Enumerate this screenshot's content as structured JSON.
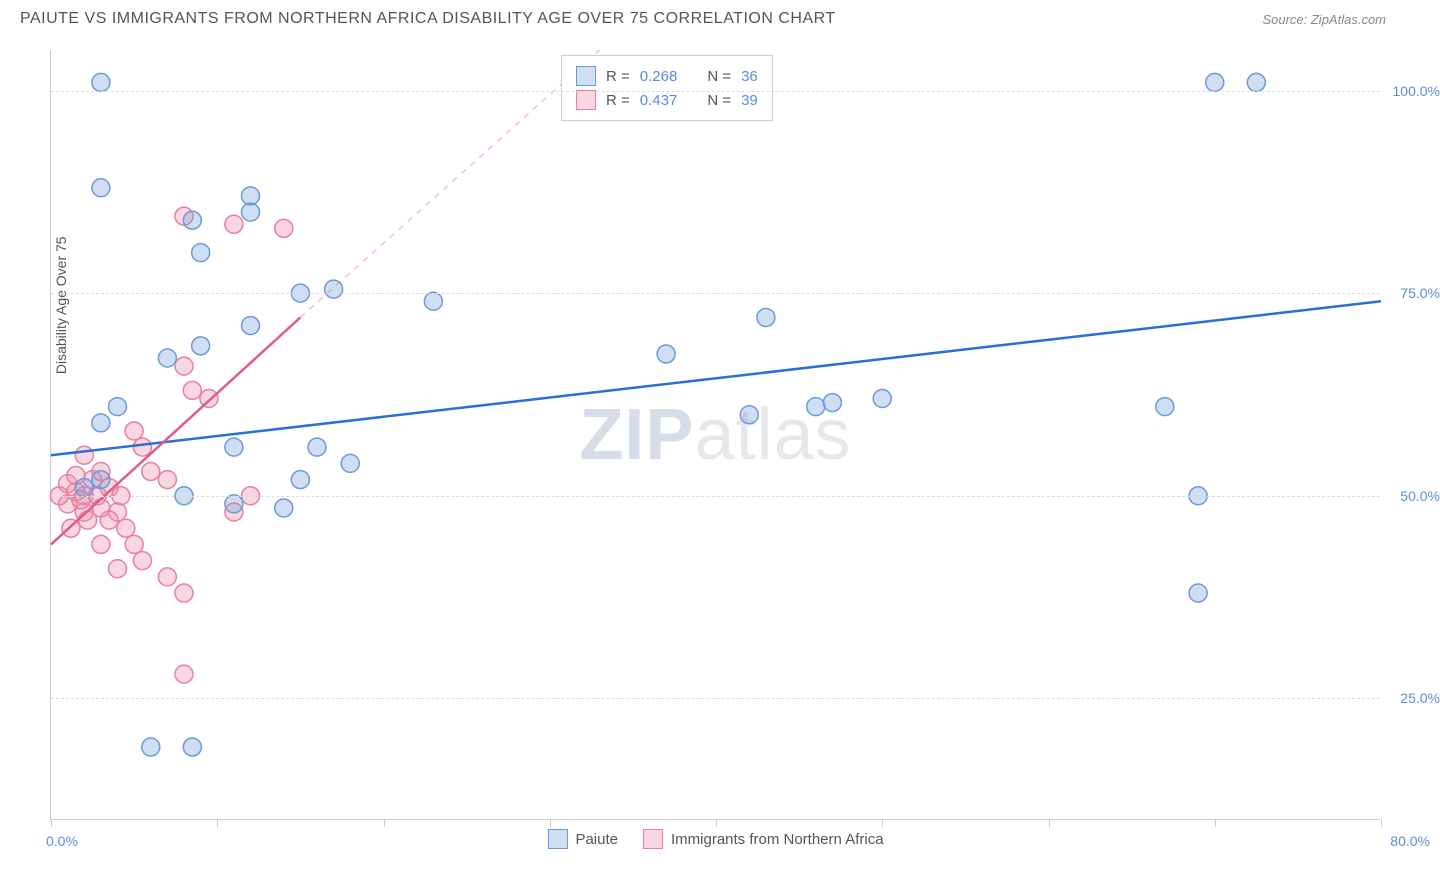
{
  "header": {
    "title": "PAIUTE VS IMMIGRANTS FROM NORTHERN AFRICA DISABILITY AGE OVER 75 CORRELATION CHART",
    "source": "Source: ZipAtlas.com"
  },
  "chart": {
    "type": "scatter",
    "y_axis_label": "Disability Age Over 75",
    "watermark": "ZIPatlas",
    "background_color": "#ffffff",
    "grid_color": "#dddddd",
    "border_color": "#cccccc",
    "x_range": [
      0,
      80
    ],
    "y_range": [
      10,
      105
    ],
    "x_ticks": [
      0,
      10,
      20,
      30,
      40,
      50,
      60,
      70,
      80
    ],
    "x_tick_labels": {
      "0": "0.0%",
      "80": "80.0%"
    },
    "y_ticks": [
      25,
      50,
      75,
      100
    ],
    "y_tick_labels": {
      "25": "25.0%",
      "50": "50.0%",
      "75": "75.0%",
      "100": "100.0%"
    },
    "series": {
      "paiute": {
        "label": "Paiute",
        "color_fill": "rgba(120,160,220,0.35)",
        "color_stroke": "#6a9bd8",
        "marker_radius": 9,
        "regression": {
          "x1": 0,
          "y1": 55,
          "x2": 80,
          "y2": 74,
          "color": "#2a6fd6",
          "width": 2.5,
          "dash": "none"
        },
        "stats": {
          "R": "0.268",
          "N": "36"
        },
        "points": [
          [
            3,
            101
          ],
          [
            70,
            101
          ],
          [
            72.5,
            101
          ],
          [
            3,
            88
          ],
          [
            12,
            87
          ],
          [
            9,
            80
          ],
          [
            8.5,
            84
          ],
          [
            12,
            85
          ],
          [
            15,
            75
          ],
          [
            17,
            75.5
          ],
          [
            23,
            74
          ],
          [
            43,
            72
          ],
          [
            37,
            67.5
          ],
          [
            12,
            71
          ],
          [
            9,
            68.5
          ],
          [
            7,
            67
          ],
          [
            3,
            59
          ],
          [
            4,
            61
          ],
          [
            11,
            56
          ],
          [
            16,
            56
          ],
          [
            18,
            54
          ],
          [
            46,
            61
          ],
          [
            47,
            61.5
          ],
          [
            8,
            50
          ],
          [
            11,
            49
          ],
          [
            14,
            48.5
          ],
          [
            3,
            52
          ],
          [
            2,
            51
          ],
          [
            69,
            50
          ],
          [
            67,
            61
          ],
          [
            6,
            19
          ],
          [
            8.5,
            19
          ],
          [
            69,
            38
          ],
          [
            15,
            52
          ],
          [
            50,
            62
          ],
          [
            42,
            60
          ]
        ]
      },
      "immigrants": {
        "label": "Immigrants from Northern Africa",
        "color_fill": "rgba(235,140,165,0.35)",
        "color_stroke": "#e97ea0",
        "marker_radius": 9,
        "regression_solid": {
          "x1": 0,
          "y1": 44,
          "x2": 15,
          "y2": 72,
          "color": "#e05a8a",
          "width": 2.5
        },
        "regression_dashed": {
          "x1": 15,
          "y1": 72,
          "x2": 33,
          "y2": 105,
          "color": "rgba(224,90,138,0.4)",
          "width": 1.5
        },
        "stats": {
          "R": "0.437",
          "N": "39"
        },
        "points": [
          [
            1,
            49
          ],
          [
            1.5,
            50.5
          ],
          [
            2,
            48
          ],
          [
            2,
            50
          ],
          [
            2.5,
            52
          ],
          [
            2.2,
            47
          ],
          [
            0.5,
            50
          ],
          [
            1,
            51.5
          ],
          [
            1.8,
            49.5
          ],
          [
            2.8,
            50
          ],
          [
            3,
            48.5
          ],
          [
            3,
            53
          ],
          [
            3.5,
            51
          ],
          [
            1.2,
            46
          ],
          [
            8,
            84.5
          ],
          [
            11,
            83.5
          ],
          [
            14,
            83
          ],
          [
            8,
            66
          ],
          [
            8.5,
            63
          ],
          [
            9.5,
            62
          ],
          [
            5,
            58
          ],
          [
            5.5,
            56
          ],
          [
            6,
            53
          ],
          [
            7,
            52
          ],
          [
            4,
            48
          ],
          [
            4.5,
            46
          ],
          [
            5,
            44
          ],
          [
            5.5,
            42
          ],
          [
            7,
            40
          ],
          [
            8,
            38
          ],
          [
            4,
            41
          ],
          [
            3,
            44
          ],
          [
            8,
            28
          ],
          [
            11,
            48
          ],
          [
            12,
            50
          ],
          [
            2,
            55
          ],
          [
            3.5,
            47
          ],
          [
            4.2,
            50
          ],
          [
            1.5,
            52.5
          ]
        ]
      }
    },
    "stats_box": {
      "rows": [
        {
          "swatch_fill": "rgba(120,160,220,0.35)",
          "swatch_stroke": "#6a9bd8",
          "r": "0.268",
          "n": "36"
        },
        {
          "swatch_fill": "rgba(235,140,165,0.35)",
          "swatch_stroke": "#e97ea0",
          "r": "0.437",
          "n": "39"
        }
      ],
      "labels": {
        "R": "R =",
        "N": "N ="
      }
    },
    "bottom_legend": [
      {
        "swatch_fill": "rgba(120,160,220,0.35)",
        "swatch_stroke": "#6a9bd8",
        "label": "Paiute"
      },
      {
        "swatch_fill": "rgba(235,140,165,0.35)",
        "swatch_stroke": "#e97ea0",
        "label": "Immigrants from Northern Africa"
      }
    ]
  }
}
